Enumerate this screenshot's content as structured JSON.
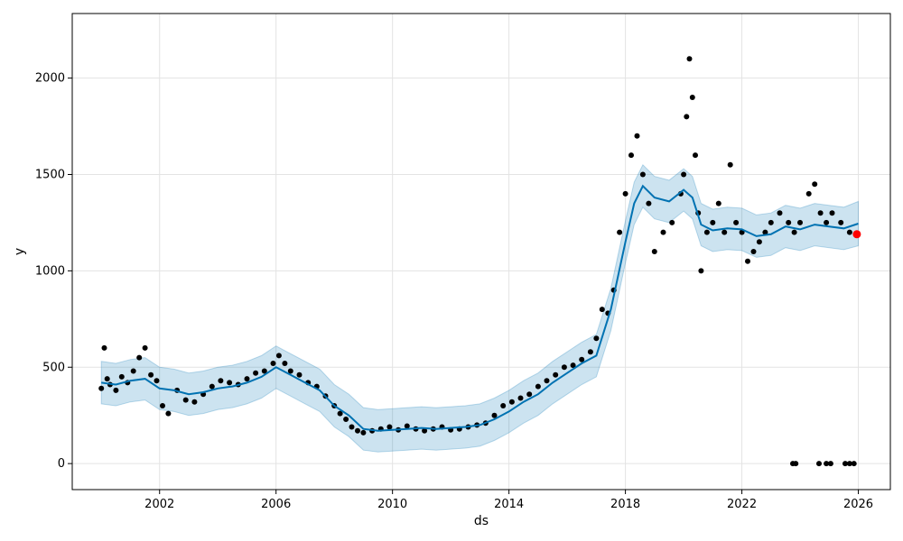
{
  "chart_data": {
    "type": "line",
    "title": "",
    "xlabel": "ds",
    "ylabel": "y",
    "xlim": [
      1999.0,
      2027.1
    ],
    "ylim": [
      -135,
      2335
    ],
    "grid": true,
    "x_ticks": [
      {
        "value": 2002,
        "label": "2002"
      },
      {
        "value": 2006,
        "label": "2006"
      },
      {
        "value": 2010,
        "label": "2010"
      },
      {
        "value": 2014,
        "label": "2014"
      },
      {
        "value": 2018,
        "label": "2018"
      },
      {
        "value": 2022,
        "label": "2022"
      },
      {
        "value": 2026,
        "label": "2026"
      }
    ],
    "y_ticks": [
      {
        "value": 0,
        "label": "0"
      },
      {
        "value": 500,
        "label": "500"
      },
      {
        "value": 1000,
        "label": "1000"
      },
      {
        "value": 1500,
        "label": "1500"
      },
      {
        "value": 2000,
        "label": "2000"
      }
    ],
    "colors": {
      "observed": "#000000",
      "forecast_line": "#0072B2",
      "uncertainty_band": "#0072B2",
      "highlight_point": "#ff0000",
      "grid": "#e3e3e3"
    },
    "forecast": {
      "x": [
        2000.0,
        2000.5,
        2001.0,
        2001.5,
        2002.0,
        2002.5,
        2003.0,
        2003.5,
        2004.0,
        2004.5,
        2005.0,
        2005.5,
        2006.0,
        2006.5,
        2007.0,
        2007.5,
        2008.0,
        2008.5,
        2009.0,
        2009.5,
        2010.0,
        2010.5,
        2011.0,
        2011.5,
        2012.0,
        2012.5,
        2013.0,
        2013.5,
        2014.0,
        2014.5,
        2015.0,
        2015.5,
        2016.0,
        2016.5,
        2017.0,
        2017.5,
        2018.0,
        2018.3,
        2018.6,
        2019.0,
        2019.5,
        2020.0,
        2020.3,
        2020.6,
        2021.0,
        2021.5,
        2022.0,
        2022.5,
        2023.0,
        2023.5,
        2024.0,
        2024.5,
        2025.0,
        2025.5,
        2026.0
      ],
      "yhat": [
        420,
        410,
        430,
        440,
        390,
        380,
        360,
        370,
        390,
        400,
        420,
        450,
        500,
        460,
        420,
        380,
        300,
        250,
        180,
        170,
        175,
        180,
        185,
        180,
        185,
        190,
        200,
        230,
        270,
        320,
        360,
        420,
        470,
        520,
        560,
        800,
        1150,
        1350,
        1440,
        1380,
        1360,
        1420,
        1380,
        1240,
        1210,
        1220,
        1215,
        1180,
        1190,
        1230,
        1215,
        1240,
        1230,
        1220,
        1245
      ],
      "lower": [
        310,
        300,
        320,
        330,
        280,
        270,
        250,
        260,
        280,
        290,
        310,
        340,
        390,
        350,
        310,
        270,
        190,
        140,
        70,
        60,
        65,
        70,
        75,
        70,
        75,
        80,
        90,
        120,
        160,
        210,
        250,
        310,
        360,
        410,
        450,
        690,
        1040,
        1240,
        1330,
        1270,
        1250,
        1310,
        1270,
        1130,
        1100,
        1110,
        1105,
        1070,
        1080,
        1120,
        1105,
        1130,
        1120,
        1110,
        1130
      ],
      "upper": [
        530,
        520,
        540,
        550,
        500,
        490,
        470,
        480,
        500,
        510,
        530,
        560,
        610,
        570,
        530,
        490,
        410,
        360,
        290,
        280,
        285,
        290,
        295,
        290,
        295,
        300,
        310,
        340,
        380,
        430,
        470,
        530,
        580,
        630,
        670,
        910,
        1260,
        1460,
        1550,
        1490,
        1470,
        1530,
        1490,
        1350,
        1320,
        1330,
        1325,
        1290,
        1300,
        1340,
        1325,
        1350,
        1340,
        1330,
        1360
      ]
    },
    "observed": {
      "x": [
        2000.0,
        2000.1,
        2000.2,
        2000.3,
        2000.5,
        2000.7,
        2000.9,
        2001.1,
        2001.3,
        2001.5,
        2001.7,
        2001.9,
        2002.1,
        2002.3,
        2002.6,
        2002.9,
        2003.2,
        2003.5,
        2003.8,
        2004.1,
        2004.4,
        2004.7,
        2005.0,
        2005.3,
        2005.6,
        2005.9,
        2006.1,
        2006.3,
        2006.5,
        2006.8,
        2007.1,
        2007.4,
        2007.7,
        2008.0,
        2008.2,
        2008.4,
        2008.6,
        2008.8,
        2009.0,
        2009.3,
        2009.6,
        2009.9,
        2010.2,
        2010.5,
        2010.8,
        2011.1,
        2011.4,
        2011.7,
        2012.0,
        2012.3,
        2012.6,
        2012.9,
        2013.2,
        2013.5,
        2013.8,
        2014.1,
        2014.4,
        2014.7,
        2015.0,
        2015.3,
        2015.6,
        2015.9,
        2016.2,
        2016.5,
        2016.8,
        2017.0,
        2017.2,
        2017.4,
        2017.6,
        2017.8,
        2018.0,
        2018.2,
        2018.4,
        2018.6,
        2018.8,
        2019.0,
        2019.3,
        2019.6,
        2019.9,
        2020.0,
        2020.1,
        2020.2,
        2020.3,
        2020.4,
        2020.5,
        2020.6,
        2020.8,
        2021.0,
        2021.2,
        2021.4,
        2021.6,
        2021.8,
        2022.0,
        2022.2,
        2022.4,
        2022.6,
        2022.8,
        2023.0,
        2023.3,
        2023.6,
        2023.8,
        2024.0,
        2024.3,
        2024.5,
        2024.7,
        2024.9,
        2025.1,
        2025.4,
        2025.7,
        2025.95
      ],
      "y": [
        390,
        600,
        440,
        410,
        380,
        450,
        420,
        480,
        550,
        600,
        460,
        430,
        300,
        260,
        380,
        330,
        320,
        360,
        400,
        430,
        420,
        410,
        440,
        470,
        480,
        520,
        560,
        520,
        480,
        460,
        420,
        400,
        350,
        300,
        260,
        230,
        190,
        170,
        160,
        170,
        180,
        190,
        175,
        195,
        180,
        170,
        180,
        190,
        175,
        180,
        190,
        200,
        210,
        250,
        300,
        320,
        340,
        360,
        400,
        430,
        460,
        500,
        510,
        540,
        580,
        650,
        800,
        780,
        900,
        1200,
        1400,
        1600,
        1700,
        1500,
        1350,
        1100,
        1200,
        1250,
        1400,
        1500,
        1800,
        2100,
        1900,
        1600,
        1300,
        1000,
        1200,
        1250,
        1350,
        1200,
        1550,
        1250,
        1200,
        1050,
        1100,
        1150,
        1200,
        1250,
        1300,
        1250,
        1200,
        1250,
        1400,
        1450,
        1300,
        1250,
        1300,
        1250,
        1200,
        1190
      ]
    },
    "outliers": {
      "x": [
        2023.75,
        2023.85,
        2024.65,
        2024.9,
        2025.05,
        2025.55,
        2025.7,
        2025.85
      ],
      "y": [
        0,
        0,
        0,
        0,
        0,
        0,
        0,
        0
      ]
    },
    "highlight": {
      "x": 2025.95,
      "y": 1190
    }
  }
}
